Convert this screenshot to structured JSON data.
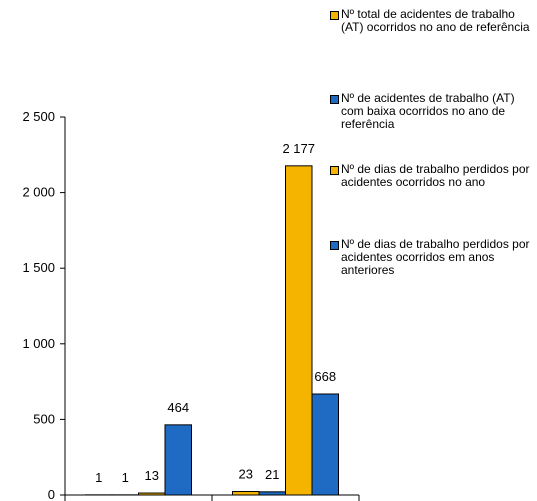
{
  "chart_data": {
    "type": "bar",
    "categories": [
      null,
      null
    ],
    "series": [
      {
        "name": "Nº total de acidentes de trabalho (AT) ocorridos no ano de referência",
        "color": "#f5b400",
        "values": [
          1,
          23
        ]
      },
      {
        "name": "Nº de acidentes de trabalho (AT) com baixa ocorridos no ano de referência",
        "color": "#1f6bc4",
        "values": [
          1,
          21
        ]
      },
      {
        "name": "Nº de dias de trabalho perdidos por acidentes ocorridos no ano",
        "color": "#f5b400",
        "values": [
          13,
          2177
        ],
        "value_labels": [
          "13",
          "2 177"
        ]
      },
      {
        "name": "Nº de dias de trabalho perdidos por acidentes ocorridos em anos anteriores",
        "color": "#1f6bc4",
        "values": [
          464,
          668
        ]
      }
    ],
    "ylim": [
      0,
      2500
    ],
    "yticks": [
      0,
      500,
      {
        "value": 1000,
        "label": "1 000"
      },
      {
        "value": 1500,
        "label": "1 500"
      },
      {
        "value": 2000,
        "label": "2 000"
      },
      {
        "value": 2500,
        "label": "2 500"
      }
    ]
  }
}
